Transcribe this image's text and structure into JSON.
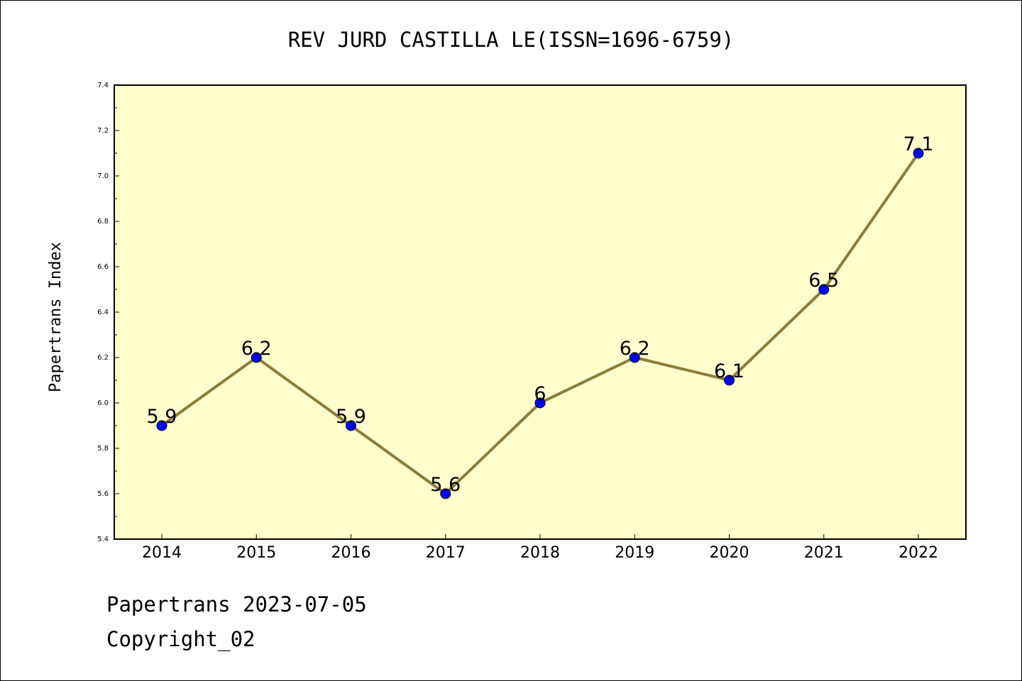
{
  "chart_data": {
    "type": "line",
    "title": "REV JURD CASTILLA LE(ISSN=1696-6759)",
    "xlabel": "",
    "ylabel": "Papertrans Index",
    "categories": [
      "2014",
      "2015",
      "2016",
      "2017",
      "2018",
      "2019",
      "2020",
      "2021",
      "2022"
    ],
    "series": [
      {
        "values": [
          5.9,
          6.2,
          5.9,
          5.6,
          6.0,
          6.2,
          6.1,
          6.5,
          7.1
        ],
        "data_labels": [
          "5.9",
          "6.2",
          "5.9",
          "5.6",
          "6",
          "6.2",
          "6.1",
          "6.5",
          "7.1"
        ]
      }
    ],
    "ylim": [
      5.4,
      7.4
    ],
    "yticks": [
      "5.4",
      "5.6",
      "5.8",
      "6.0",
      "6.2",
      "6.4",
      "6.6",
      "6.8",
      "7.0",
      "7.2",
      "7.4"
    ],
    "grid": false,
    "legend": "none",
    "colors": {
      "plot_background": "#ffffcc",
      "line": "#8b7d3a",
      "marker_fill": "#0000ff",
      "marker_edge": "#000000"
    }
  },
  "footer": {
    "line1": "Papertrans 2023-07-05",
    "line2": "Copyright_02"
  }
}
